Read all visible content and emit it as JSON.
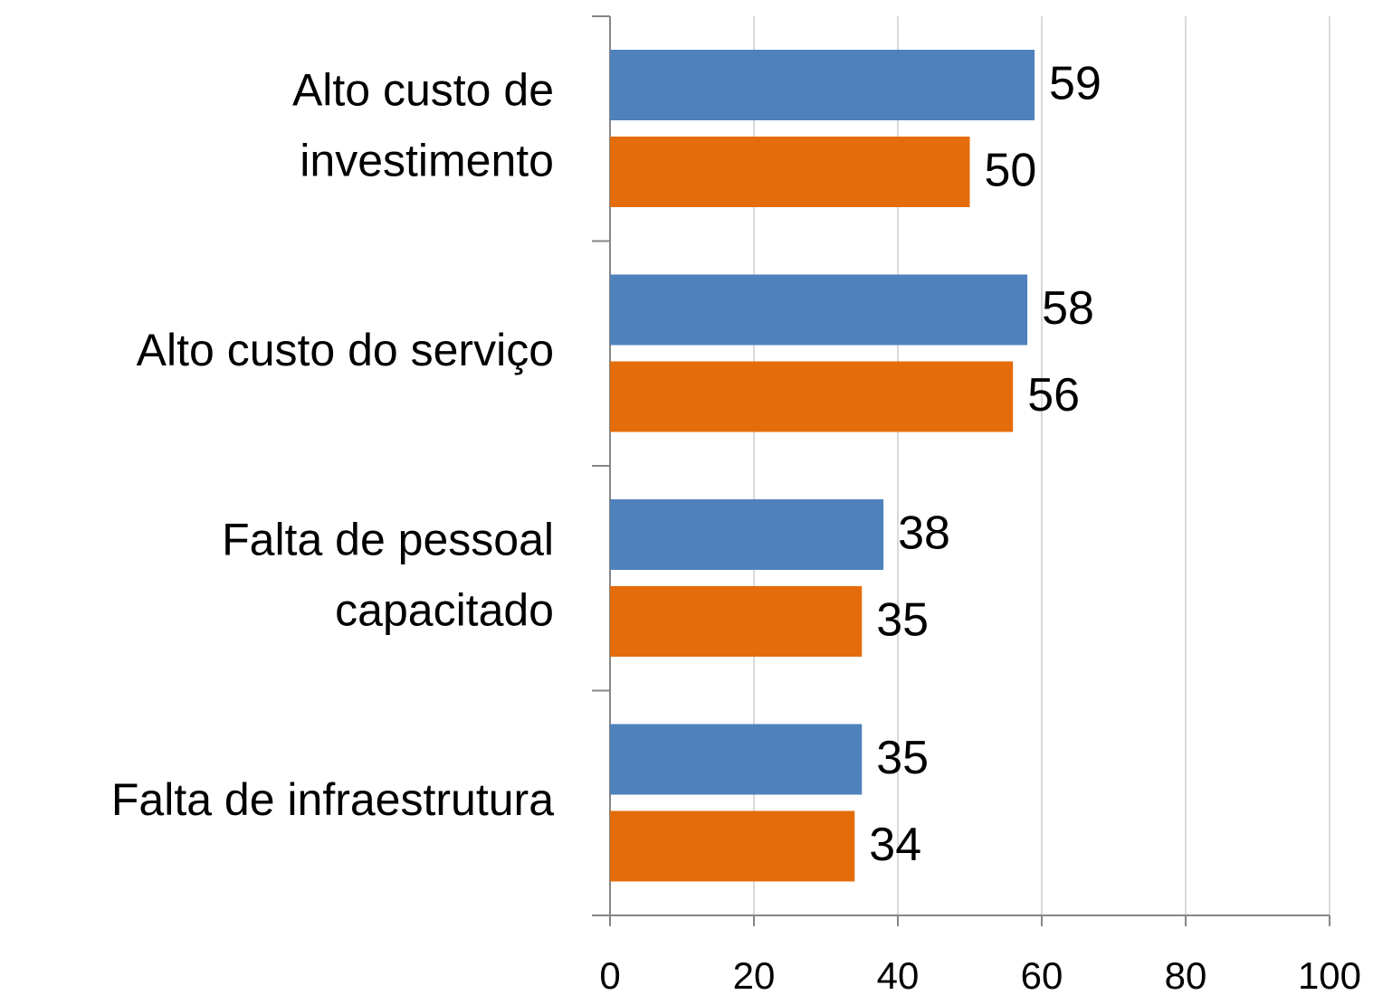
{
  "chart_data": {
    "type": "bar",
    "orientation": "horizontal",
    "categories": [
      "Alto custo de\ninvestimento",
      "Alto custo do serviço",
      "Falta de pessoal\ncapacitado",
      "Falta de infraestrutura"
    ],
    "series": [
      {
        "color": "#4f81bd",
        "values": [
          59,
          58,
          38,
          35
        ]
      },
      {
        "color": "#e46c0a",
        "values": [
          50,
          56,
          35,
          34
        ]
      }
    ],
    "xlim": [
      0,
      100
    ],
    "xticks": [
      0,
      20,
      40,
      60,
      80,
      100
    ],
    "grid": true
  }
}
